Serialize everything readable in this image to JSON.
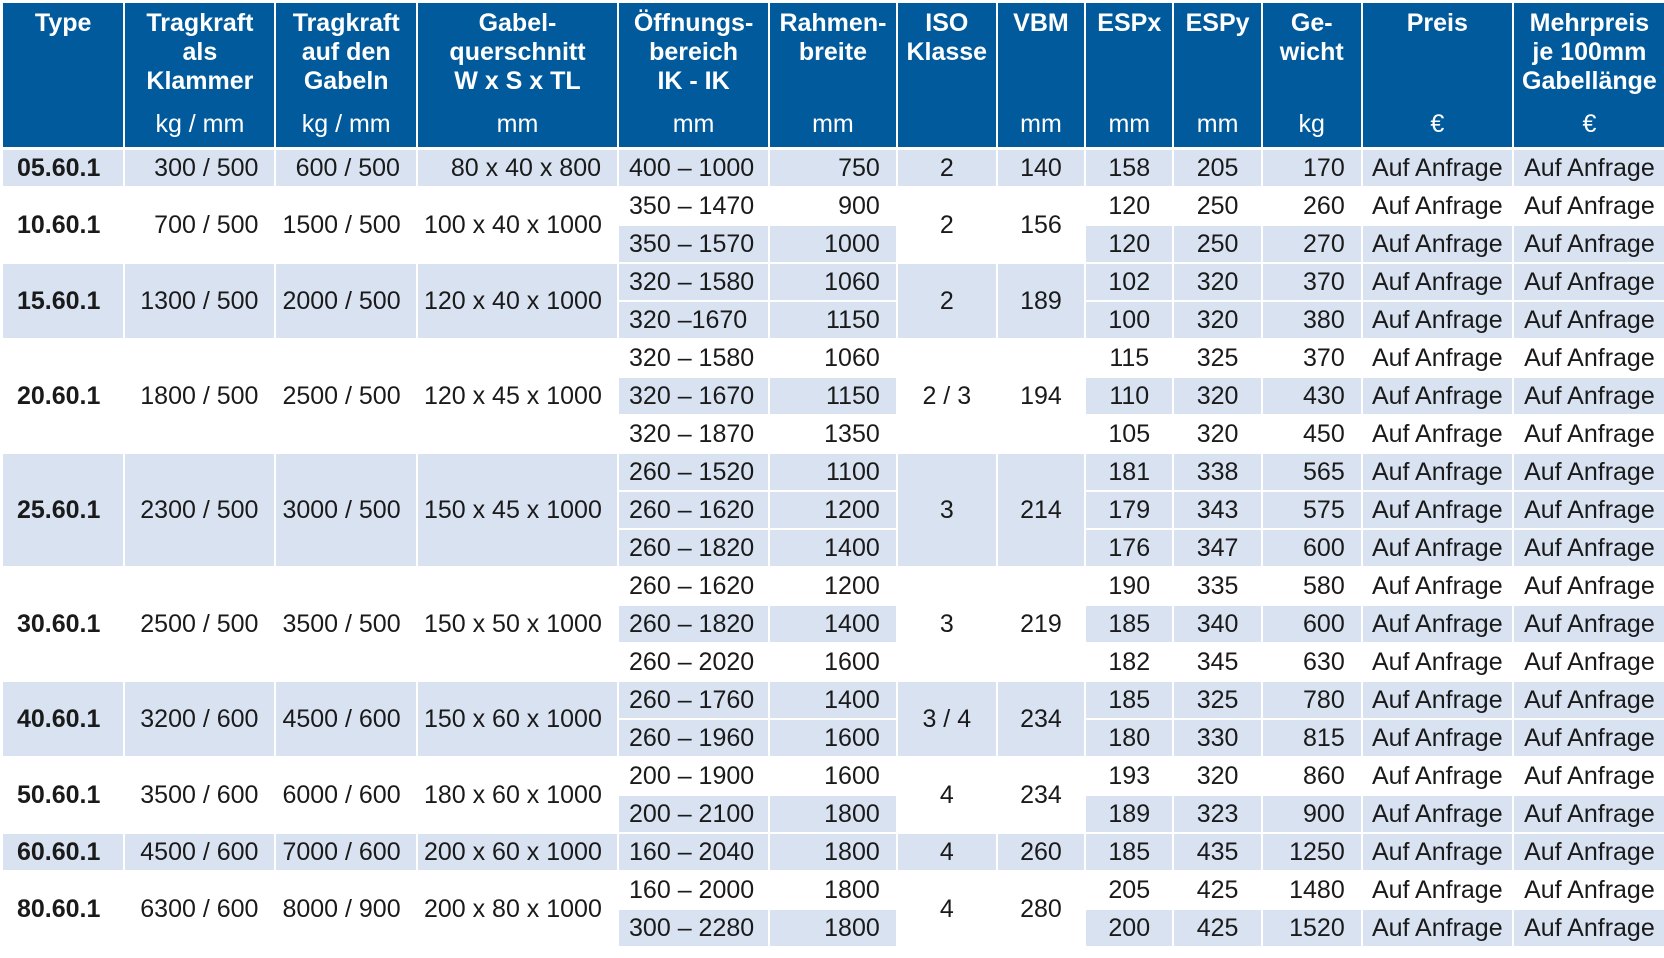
{
  "columns": [
    {
      "label": "Type",
      "unit": ""
    },
    {
      "label": "Tragkraft als Klammer",
      "unit": "kg / mm"
    },
    {
      "label": "Tragkraft auf den Gabeln",
      "unit": "kg / mm"
    },
    {
      "label": "Gabel-querschnitt W x S x TL",
      "unit": "mm"
    },
    {
      "label": "Öffnungs-bereich IK - IK",
      "unit": "mm"
    },
    {
      "label": "Rahmen-breite",
      "unit": "mm"
    },
    {
      "label": "ISO Klasse",
      "unit": ""
    },
    {
      "label": "VBM",
      "unit": "mm"
    },
    {
      "label": "ESPx",
      "unit": "mm"
    },
    {
      "label": "ESPy",
      "unit": "mm"
    },
    {
      "label": "Ge-wicht",
      "unit": "kg"
    },
    {
      "label": "Preis",
      "unit": "€"
    },
    {
      "label": "Mehrpreis je 100mm Gabellänge",
      "unit": "€"
    }
  ],
  "groups": [
    {
      "type": "05.60.1",
      "klammer": "300 / 500",
      "gabeln": "600 / 500",
      "querschnitt": "80 x 40 x   800",
      "iso": "2",
      "vbm": "140",
      "rows": [
        {
          "bereich": "400 – 1000",
          "breite": "750",
          "espx": "158",
          "espy": "205",
          "gewicht": "170",
          "preis": "Auf Anfrage",
          "mehrpreis": "Auf Anfrage"
        }
      ]
    },
    {
      "type": "10.60.1",
      "klammer": "700 / 500",
      "gabeln": "1500 / 500",
      "querschnitt": "100 x 40 x 1000",
      "iso": "2",
      "vbm": "156",
      "rows": [
        {
          "bereich": "350 – 1470",
          "breite": "900",
          "espx": "120",
          "espy": "250",
          "gewicht": "260",
          "preis": "Auf Anfrage",
          "mehrpreis": "Auf Anfrage"
        },
        {
          "bereich": "350 – 1570",
          "breite": "1000",
          "espx": "120",
          "espy": "250",
          "gewicht": "270",
          "preis": "Auf Anfrage",
          "mehrpreis": "Auf Anfrage"
        }
      ]
    },
    {
      "type": "15.60.1",
      "klammer": "1300 / 500",
      "gabeln": "2000 / 500",
      "querschnitt": "120 x 40 x 1000",
      "iso": "2",
      "vbm": "189",
      "rows": [
        {
          "bereich": "320 – 1580",
          "breite": "1060",
          "espx": "102",
          "espy": "320",
          "gewicht": "370",
          "preis": "Auf Anfrage",
          "mehrpreis": "Auf Anfrage"
        },
        {
          "bereich": "320  –1670",
          "breite": "1150",
          "espx": "100",
          "espy": "320",
          "gewicht": "380",
          "preis": "Auf Anfrage",
          "mehrpreis": "Auf Anfrage"
        }
      ]
    },
    {
      "type": "20.60.1",
      "klammer": "1800 / 500",
      "gabeln": "2500 / 500",
      "querschnitt": "120 x 45 x 1000",
      "iso": "2 / 3",
      "vbm": "194",
      "rows": [
        {
          "bereich": "320 – 1580",
          "breite": "1060",
          "espx": "115",
          "espy": "325",
          "gewicht": "370",
          "preis": "Auf Anfrage",
          "mehrpreis": "Auf Anfrage"
        },
        {
          "bereich": "320 – 1670",
          "breite": "1150",
          "espx": "110",
          "espy": "320",
          "gewicht": "430",
          "preis": "Auf Anfrage",
          "mehrpreis": "Auf Anfrage"
        },
        {
          "bereich": "320 – 1870",
          "breite": "1350",
          "espx": "105",
          "espy": "320",
          "gewicht": "450",
          "preis": "Auf Anfrage",
          "mehrpreis": "Auf Anfrage"
        }
      ]
    },
    {
      "type": "25.60.1",
      "klammer": "2300 / 500",
      "gabeln": "3000 / 500",
      "querschnitt": "150 x 45 x 1000",
      "iso": "3",
      "vbm": "214",
      "rows": [
        {
          "bereich": "260 – 1520",
          "breite": "1100",
          "espx": "181",
          "espy": "338",
          "gewicht": "565",
          "preis": "Auf Anfrage",
          "mehrpreis": "Auf Anfrage"
        },
        {
          "bereich": "260 – 1620",
          "breite": "1200",
          "espx": "179",
          "espy": "343",
          "gewicht": "575",
          "preis": "Auf Anfrage",
          "mehrpreis": "Auf Anfrage"
        },
        {
          "bereich": "260 – 1820",
          "breite": "1400",
          "espx": "176",
          "espy": "347",
          "gewicht": "600",
          "preis": "Auf Anfrage",
          "mehrpreis": "Auf Anfrage"
        }
      ]
    },
    {
      "type": "30.60.1",
      "klammer": "2500 / 500",
      "gabeln": "3500 / 500",
      "querschnitt": "150 x 50 x 1000",
      "iso": "3",
      "vbm": "219",
      "rows": [
        {
          "bereich": "260 – 1620",
          "breite": "1200",
          "espx": "190",
          "espy": "335",
          "gewicht": "580",
          "preis": "Auf Anfrage",
          "mehrpreis": "Auf Anfrage"
        },
        {
          "bereich": "260 – 1820",
          "breite": "1400",
          "espx": "185",
          "espy": "340",
          "gewicht": "600",
          "preis": "Auf Anfrage",
          "mehrpreis": "Auf Anfrage"
        },
        {
          "bereich": "260 – 2020",
          "breite": "1600",
          "espx": "182",
          "espy": "345",
          "gewicht": "630",
          "preis": "Auf Anfrage",
          "mehrpreis": "Auf Anfrage"
        }
      ]
    },
    {
      "type": "40.60.1",
      "klammer": "3200 / 600",
      "gabeln": "4500 / 600",
      "querschnitt": "150 x 60 x 1000",
      "iso": "3 / 4",
      "vbm": "234",
      "rows": [
        {
          "bereich": "260 – 1760",
          "breite": "1400",
          "espx": "185",
          "espy": "325",
          "gewicht": "780",
          "preis": "Auf Anfrage",
          "mehrpreis": "Auf Anfrage"
        },
        {
          "bereich": "260 – 1960",
          "breite": "1600",
          "espx": "180",
          "espy": "330",
          "gewicht": "815",
          "preis": "Auf Anfrage",
          "mehrpreis": "Auf Anfrage"
        }
      ]
    },
    {
      "type": "50.60.1",
      "klammer": "3500 / 600",
      "gabeln": "6000 / 600",
      "querschnitt": "180 x 60 x 1000",
      "iso": "4",
      "vbm": "234",
      "rows": [
        {
          "bereich": "200 – 1900",
          "breite": "1600",
          "espx": "193",
          "espy": "320",
          "gewicht": "860",
          "preis": "Auf Anfrage",
          "mehrpreis": "Auf Anfrage"
        },
        {
          "bereich": "200 – 2100",
          "breite": "1800",
          "espx": "189",
          "espy": "323",
          "gewicht": "900",
          "preis": "Auf Anfrage",
          "mehrpreis": "Auf Anfrage"
        }
      ]
    },
    {
      "type": "60.60.1",
      "klammer": "4500 / 600",
      "gabeln": "7000 / 600",
      "querschnitt": "200 x 60 x 1000",
      "iso": "4",
      "vbm": "260",
      "rows": [
        {
          "bereich": "160 – 2040",
          "breite": "1800",
          "espx": "185",
          "espy": "435",
          "gewicht": "1250",
          "preis": "Auf Anfrage",
          "mehrpreis": "Auf Anfrage"
        }
      ]
    },
    {
      "type": "80.60.1",
      "klammer": "6300 / 600",
      "gabeln": "8000 / 900",
      "querschnitt": "200 x 80 x 1000",
      "iso": "4",
      "vbm": "280",
      "rows": [
        {
          "bereich": "160 – 2000",
          "breite": "1800",
          "espx": "205",
          "espy": "425",
          "gewicht": "1480",
          "preis": "Auf Anfrage",
          "mehrpreis": "Auf Anfrage"
        },
        {
          "bereich": "300 – 2280",
          "breite": "1800",
          "espx": "200",
          "espy": "425",
          "gewicht": "1520",
          "preis": "Auf Anfrage",
          "mehrpreis": "Auf Anfrage"
        }
      ]
    }
  ]
}
